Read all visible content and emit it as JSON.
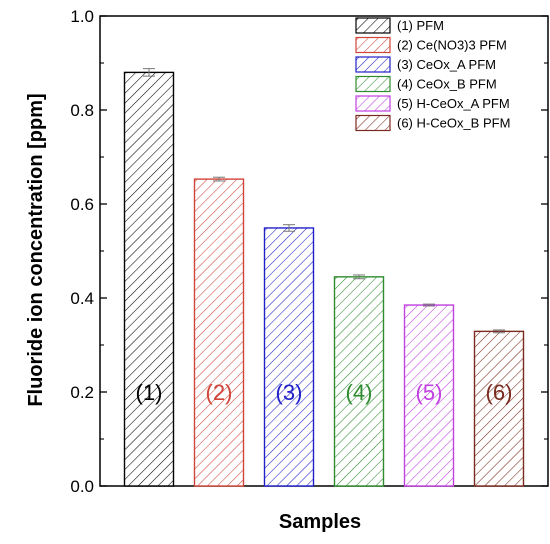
{
  "chart_data": {
    "type": "bar",
    "xlabel": "Samples",
    "ylabel": "Fluoride ion concentration [ppm]",
    "ylim": [
      0.0,
      1.0
    ],
    "yticks": [
      "0.0",
      "0.2",
      "0.4",
      "0.6",
      "0.8",
      "1.0"
    ],
    "grid": false,
    "legend_position": "top-right",
    "bar_labels": [
      "(1)",
      "(2)",
      "(3)",
      "(4)",
      "(5)",
      "(6)"
    ],
    "legend": [
      "(1) PFM",
      "(2) Ce(NO3)3 PFM",
      "(3) CeOx_A PFM",
      "(4) CeOx_B PFM",
      "(5) H-CeOx_A PFM",
      "(6) H-CeOx_B PFM"
    ],
    "values": [
      0.88,
      0.653,
      0.549,
      0.445,
      0.385,
      0.329
    ],
    "errors": [
      0.008,
      0.004,
      0.007,
      0.004,
      0.002,
      0.003
    ],
    "colors": [
      "#000000",
      "#d0453a",
      "#2020c8",
      "#2e8b2e",
      "#c040e0",
      "#7a2a1e"
    ],
    "pattern": "diagonal-hatch"
  }
}
